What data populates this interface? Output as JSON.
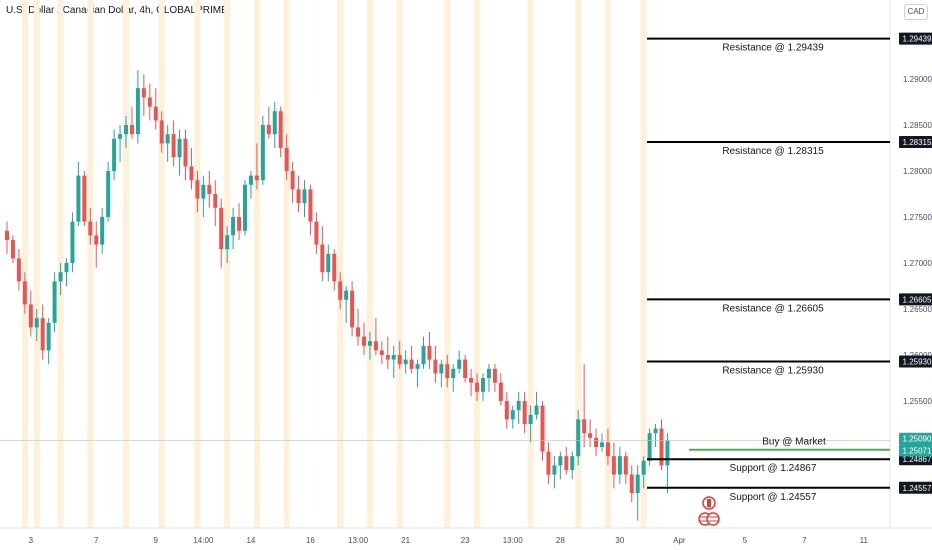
{
  "header": {
    "title": "U.S. Dollar / Canadian Dollar, 4h, GLOBALPRIME",
    "currency": "CAD"
  },
  "colors": {
    "up": "#26a69a",
    "down": "#ef5350",
    "highlight": "#fff0da",
    "level_line": "#000000",
    "buy_line": "#4caf50",
    "price_tag": "#26a69a"
  },
  "chart_data": {
    "type": "candlestick",
    "title": "U.S. Dollar / Canadian Dollar, 4h, GLOBALPRIME",
    "y_ticks": [
      "1.25500",
      "1.26000",
      "1.26500",
      "1.27000",
      "1.27500",
      "1.28000",
      "1.28500",
      "1.29000"
    ],
    "x_ticks": [
      {
        "label": "3",
        "index": 4
      },
      {
        "label": "7",
        "index": 15
      },
      {
        "label": "9",
        "index": 25
      },
      {
        "label": "14:00",
        "index": 33
      },
      {
        "label": "14",
        "index": 41
      },
      {
        "label": "16",
        "index": 51
      },
      {
        "label": "13:00",
        "index": 59
      },
      {
        "label": "21",
        "index": 67
      },
      {
        "label": "23",
        "index": 77
      },
      {
        "label": "13:00",
        "index": 85
      },
      {
        "label": "28",
        "index": 93
      },
      {
        "label": "30",
        "index": 103
      },
      {
        "label": "Apr",
        "index": 113
      },
      {
        "label": "5",
        "index": 124
      },
      {
        "label": "7",
        "index": 134
      },
      {
        "label": "11",
        "index": 144
      }
    ],
    "highlighted_indices": [
      3,
      5,
      9,
      14,
      20,
      26,
      32,
      37,
      42,
      47,
      56,
      61,
      66,
      74,
      79,
      88,
      96,
      101,
      107
    ],
    "candles": [
      [
        1.2735,
        1.2745,
        1.271,
        1.2725
      ],
      [
        1.2725,
        1.273,
        1.27,
        1.2705
      ],
      [
        1.2705,
        1.2715,
        1.267,
        1.268
      ],
      [
        1.268,
        1.269,
        1.2645,
        1.2655
      ],
      [
        1.2655,
        1.267,
        1.262,
        1.263
      ],
      [
        1.263,
        1.265,
        1.2615,
        1.264
      ],
      [
        1.264,
        1.2655,
        1.2595,
        1.2605
      ],
      [
        1.2605,
        1.264,
        1.259,
        1.2635
      ],
      [
        1.2635,
        1.269,
        1.2625,
        1.268
      ],
      [
        1.268,
        1.27,
        1.2665,
        1.269
      ],
      [
        1.269,
        1.2705,
        1.2675,
        1.27
      ],
      [
        1.27,
        1.2755,
        1.269,
        1.2745
      ],
      [
        1.2745,
        1.281,
        1.274,
        1.2795
      ],
      [
        1.2795,
        1.28,
        1.274,
        1.2745
      ],
      [
        1.2745,
        1.276,
        1.272,
        1.273
      ],
      [
        1.273,
        1.2745,
        1.2695,
        1.272
      ],
      [
        1.272,
        1.276,
        1.271,
        1.275
      ],
      [
        1.275,
        1.281,
        1.2745,
        1.28
      ],
      [
        1.28,
        1.2845,
        1.279,
        1.2835
      ],
      [
        1.2835,
        1.285,
        1.281,
        1.284
      ],
      [
        1.284,
        1.286,
        1.2825,
        1.285
      ],
      [
        1.285,
        1.287,
        1.2835,
        1.284
      ],
      [
        1.284,
        1.291,
        1.283,
        1.289
      ],
      [
        1.289,
        1.2905,
        1.286,
        1.288
      ],
      [
        1.288,
        1.2895,
        1.2855,
        1.287
      ],
      [
        1.287,
        1.289,
        1.2845,
        1.2855
      ],
      [
        1.2855,
        1.2865,
        1.282,
        1.283
      ],
      [
        1.283,
        1.285,
        1.281,
        1.284
      ],
      [
        1.284,
        1.2855,
        1.2805,
        1.2815
      ],
      [
        1.2815,
        1.2845,
        1.2795,
        1.2835
      ],
      [
        1.2835,
        1.2845,
        1.279,
        1.2805
      ],
      [
        1.2805,
        1.2825,
        1.278,
        1.279
      ],
      [
        1.279,
        1.28,
        1.2755,
        1.277
      ],
      [
        1.277,
        1.2795,
        1.275,
        1.2785
      ],
      [
        1.2785,
        1.28,
        1.276,
        1.2775
      ],
      [
        1.2775,
        1.279,
        1.274,
        1.276
      ],
      [
        1.276,
        1.277,
        1.2695,
        1.2715
      ],
      [
        1.2715,
        1.274,
        1.27,
        1.273
      ],
      [
        1.273,
        1.276,
        1.2715,
        1.275
      ],
      [
        1.275,
        1.2765,
        1.2725,
        1.2735
      ],
      [
        1.2735,
        1.279,
        1.273,
        1.2785
      ],
      [
        1.2785,
        1.28,
        1.277,
        1.2795
      ],
      [
        1.2795,
        1.283,
        1.278,
        1.279
      ],
      [
        1.279,
        1.286,
        1.2785,
        1.285
      ],
      [
        1.285,
        1.287,
        1.2835,
        1.284
      ],
      [
        1.284,
        1.2875,
        1.2825,
        1.2865
      ],
      [
        1.2865,
        1.287,
        1.2815,
        1.2825
      ],
      [
        1.2825,
        1.284,
        1.279,
        1.28
      ],
      [
        1.28,
        1.281,
        1.2765,
        1.278
      ],
      [
        1.278,
        1.2795,
        1.2755,
        1.2765
      ],
      [
        1.2765,
        1.279,
        1.275,
        1.278
      ],
      [
        1.278,
        1.2785,
        1.273,
        1.2745
      ],
      [
        1.2745,
        1.2755,
        1.271,
        1.272
      ],
      [
        1.272,
        1.274,
        1.268,
        1.269
      ],
      [
        1.269,
        1.272,
        1.268,
        1.271
      ],
      [
        1.271,
        1.2715,
        1.267,
        1.268
      ],
      [
        1.268,
        1.269,
        1.265,
        1.266
      ],
      [
        1.266,
        1.2675,
        1.2635,
        1.267
      ],
      [
        1.267,
        1.268,
        1.262,
        1.263
      ],
      [
        1.263,
        1.265,
        1.261,
        1.262
      ],
      [
        1.262,
        1.2635,
        1.26,
        1.261
      ],
      [
        1.261,
        1.2625,
        1.2595,
        1.2615
      ],
      [
        1.2615,
        1.264,
        1.26,
        1.2605
      ],
      [
        1.2605,
        1.2615,
        1.259,
        1.26
      ],
      [
        1.26,
        1.262,
        1.2585,
        1.2595
      ],
      [
        1.2595,
        1.261,
        1.2575,
        1.26
      ],
      [
        1.26,
        1.2615,
        1.2585,
        1.259
      ],
      [
        1.259,
        1.2605,
        1.258,
        1.2595
      ],
      [
        1.2595,
        1.261,
        1.258,
        1.2585
      ],
      [
        1.2585,
        1.2595,
        1.2565,
        1.259
      ],
      [
        1.259,
        1.262,
        1.2585,
        1.261
      ],
      [
        1.261,
        1.2625,
        1.2585,
        1.2595
      ],
      [
        1.2595,
        1.261,
        1.257,
        1.258
      ],
      [
        1.258,
        1.2595,
        1.2565,
        1.259
      ],
      [
        1.259,
        1.26,
        1.2565,
        1.2575
      ],
      [
        1.2575,
        1.259,
        1.256,
        1.2585
      ],
      [
        1.2585,
        1.2605,
        1.258,
        1.2595
      ],
      [
        1.2595,
        1.26,
        1.257,
        1.2575
      ],
      [
        1.2575,
        1.2585,
        1.2555,
        1.257
      ],
      [
        1.257,
        1.258,
        1.255,
        1.256
      ],
      [
        1.256,
        1.258,
        1.255,
        1.2575
      ],
      [
        1.2575,
        1.259,
        1.256,
        1.2585
      ],
      [
        1.2585,
        1.259,
        1.256,
        1.257
      ],
      [
        1.257,
        1.258,
        1.2545,
        1.255
      ],
      [
        1.255,
        1.256,
        1.252,
        1.253
      ],
      [
        1.253,
        1.2545,
        1.252,
        1.254
      ],
      [
        1.254,
        1.256,
        1.2525,
        1.255
      ],
      [
        1.255,
        1.256,
        1.2515,
        1.2525
      ],
      [
        1.2525,
        1.2545,
        1.2505,
        1.2535
      ],
      [
        1.2535,
        1.256,
        1.253,
        1.2545
      ],
      [
        1.2545,
        1.255,
        1.2485,
        1.2495
      ],
      [
        1.2495,
        1.2505,
        1.246,
        1.247
      ],
      [
        1.247,
        1.249,
        1.2455,
        1.248
      ],
      [
        1.248,
        1.2495,
        1.2465,
        1.249
      ],
      [
        1.249,
        1.25,
        1.247,
        1.2475
      ],
      [
        1.2475,
        1.2495,
        1.2465,
        1.249
      ],
      [
        1.249,
        1.254,
        1.248,
        1.253
      ],
      [
        1.253,
        1.259,
        1.25,
        1.2515
      ],
      [
        1.2515,
        1.253,
        1.25,
        1.251
      ],
      [
        1.251,
        1.252,
        1.249,
        1.25
      ],
      [
        1.25,
        1.2515,
        1.2495,
        1.2505
      ],
      [
        1.2505,
        1.252,
        1.248,
        1.249
      ],
      [
        1.249,
        1.2505,
        1.2455,
        1.247
      ],
      [
        1.247,
        1.25,
        1.246,
        1.249
      ],
      [
        1.249,
        1.2495,
        1.246,
        1.247
      ],
      [
        1.247,
        1.248,
        1.244,
        1.245
      ],
      [
        1.245,
        1.248,
        1.242,
        1.247
      ],
      [
        1.247,
        1.249,
        1.2455,
        1.2485
      ],
      [
        1.2485,
        1.252,
        1.248,
        1.2515
      ],
      [
        1.2515,
        1.2525,
        1.25,
        1.252
      ],
      [
        1.252,
        1.253,
        1.2475,
        1.248
      ],
      [
        1.248,
        1.2515,
        1.245,
        1.2507
      ]
    ],
    "levels": [
      {
        "label": "Resistance @ 1.29439",
        "price": 1.29439,
        "tag": "1.29439"
      },
      {
        "label": "Resistance @ 1.28315",
        "price": 1.28315,
        "tag": "1.28315"
      },
      {
        "label": "Resistance @ 1.26605",
        "price": 1.26605,
        "tag": "1.26605"
      },
      {
        "label": "Resistance @ 1.25930",
        "price": 1.2593,
        "tag": "1.25930"
      },
      {
        "label": "Support @ 1.24867",
        "price": 1.24867,
        "tag": "1.24867"
      },
      {
        "label": "Support @ 1.24557",
        "price": 1.24557,
        "tag": "1.24557"
      }
    ],
    "buy": {
      "label": "Buy @ Market",
      "price": 1.2509,
      "tag": "1.25090"
    },
    "last_price": {
      "price": 1.25071,
      "tag": "1.25071"
    }
  }
}
